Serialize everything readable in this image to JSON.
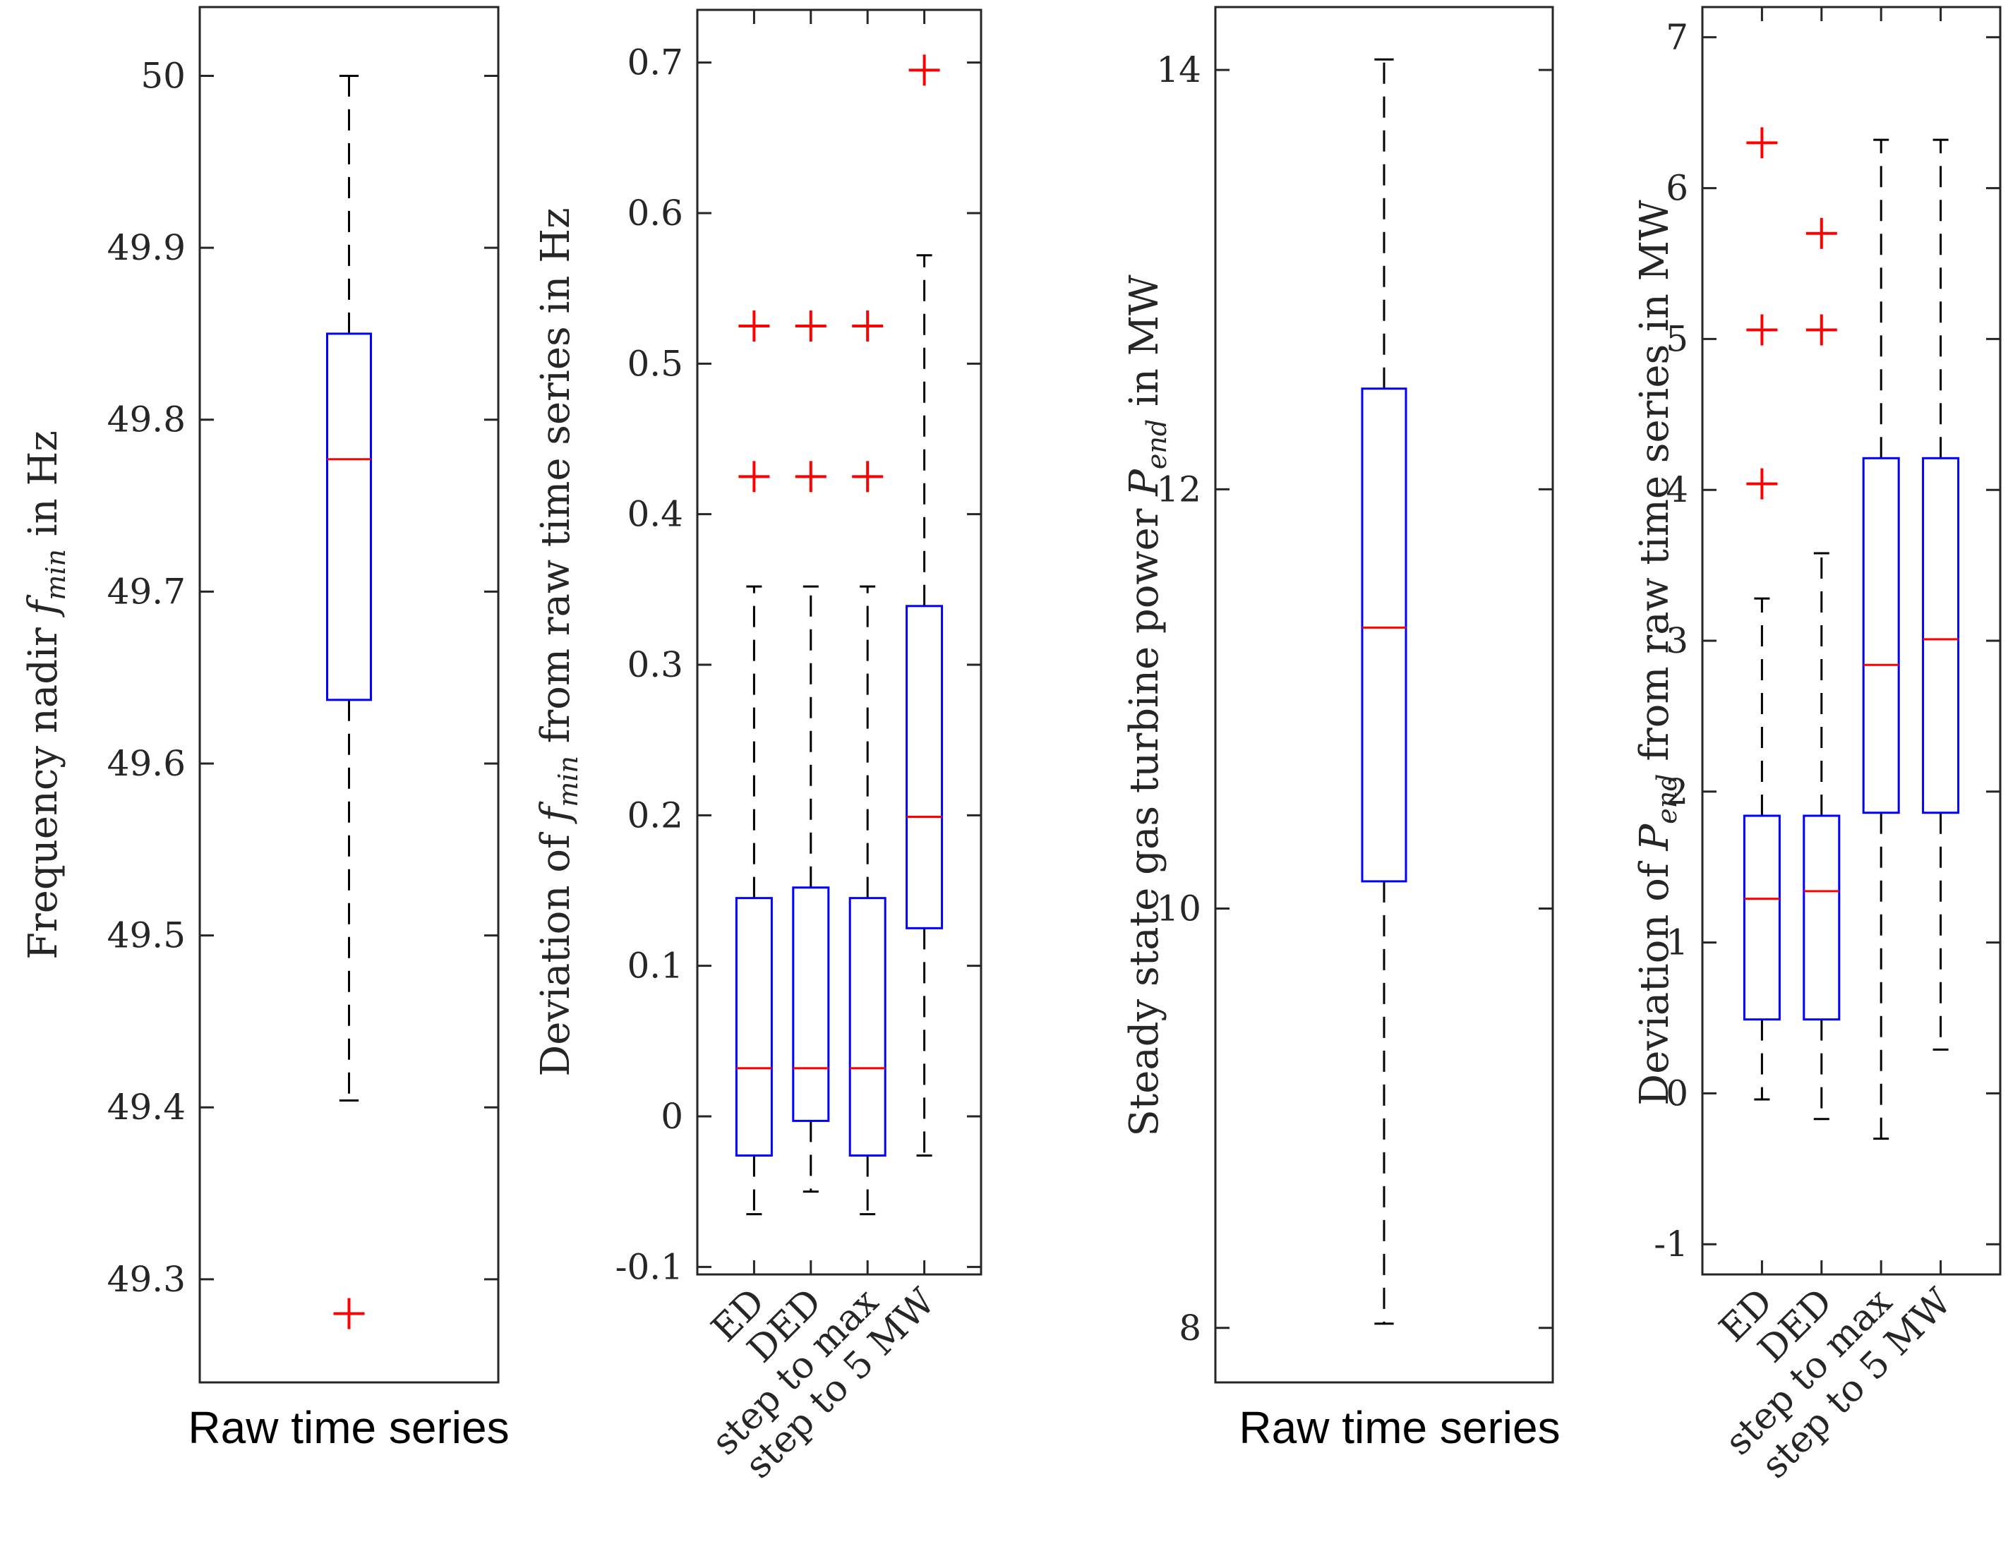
{
  "chart_data": [
    {
      "type": "box",
      "ylabel": {
        "prefix": "Frequency nadir ",
        "sym": "f",
        "sub": "min",
        "suffix": " in Hz"
      },
      "xlabel": "Raw time series",
      "ylim": [
        49.24,
        50.04
      ],
      "yticks": [
        49.3,
        49.4,
        49.5,
        49.6,
        49.7,
        49.8,
        49.9,
        50
      ],
      "ytick_labels": [
        "49.3",
        "49.4",
        "49.5",
        "49.6",
        "49.7",
        "49.8",
        "49.9",
        "50"
      ],
      "categories": [
        ""
      ],
      "boxes": [
        {
          "whisker_low": 49.404,
          "q1": 49.637,
          "median": 49.777,
          "q3": 49.85,
          "whisker_high": 50.0,
          "outliers": [
            49.28
          ]
        }
      ]
    },
    {
      "type": "box",
      "ylabel": {
        "prefix": "Deviation of ",
        "sym": "f",
        "sub": "min",
        "suffix": " from raw time series in Hz"
      },
      "xlabel": "",
      "ylim": [
        -0.105,
        0.735
      ],
      "yticks": [
        -0.1,
        0,
        0.1,
        0.2,
        0.3,
        0.4,
        0.5,
        0.6,
        0.7
      ],
      "ytick_labels": [
        "-0.1",
        "0",
        "0.1",
        "0.2",
        "0.3",
        "0.4",
        "0.5",
        "0.6",
        "0.7"
      ],
      "categories": [
        "ED",
        "DED",
        "step to max",
        "step to 5 MW"
      ],
      "boxes": [
        {
          "whisker_low": -0.065,
          "q1": -0.026,
          "median": 0.032,
          "q3": 0.145,
          "whisker_high": 0.352,
          "outliers": [
            0.425,
            0.525
          ]
        },
        {
          "whisker_low": -0.05,
          "q1": -0.003,
          "median": 0.032,
          "q3": 0.152,
          "whisker_high": 0.352,
          "outliers": [
            0.425,
            0.525
          ]
        },
        {
          "whisker_low": -0.065,
          "q1": -0.026,
          "median": 0.032,
          "q3": 0.145,
          "whisker_high": 0.352,
          "outliers": [
            0.425,
            0.525
          ]
        },
        {
          "whisker_low": -0.026,
          "q1": 0.125,
          "median": 0.199,
          "q3": 0.339,
          "whisker_high": 0.572,
          "outliers": [
            0.695
          ]
        }
      ]
    },
    {
      "type": "box",
      "ylabel": {
        "prefix": "Steady state gas turbine power ",
        "sym": "P",
        "sub": "end",
        "suffix": " in MW"
      },
      "xlabel": "Raw time series",
      "ylim": [
        7.74,
        14.3
      ],
      "yticks": [
        8,
        10,
        12,
        14
      ],
      "ytick_labels": [
        "8",
        "10",
        "12",
        "14"
      ],
      "categories": [
        ""
      ],
      "boxes": [
        {
          "whisker_low": 8.02,
          "q1": 10.13,
          "median": 11.34,
          "q3": 12.48,
          "whisker_high": 14.05,
          "outliers": []
        }
      ]
    },
    {
      "type": "box",
      "ylabel": {
        "prefix": "Deviation of ",
        "sym": "P",
        "sub": "end",
        "suffix": " from raw time series in MW"
      },
      "xlabel": "",
      "ylim": [
        -1.2,
        7.2
      ],
      "yticks": [
        -1,
        0,
        1,
        2,
        3,
        4,
        5,
        6,
        7
      ],
      "ytick_labels": [
        "-1",
        "0",
        "1",
        "2",
        "3",
        "4",
        "5",
        "6",
        "7"
      ],
      "categories": [
        "ED",
        "DED",
        "step to max",
        "step to 5 MW"
      ],
      "boxes": [
        {
          "whisker_low": -0.04,
          "q1": 0.49,
          "median": 1.29,
          "q3": 1.84,
          "whisker_high": 3.28,
          "outliers": [
            4.04,
            5.06,
            6.3
          ]
        },
        {
          "whisker_low": -0.17,
          "q1": 0.49,
          "median": 1.34,
          "q3": 1.84,
          "whisker_high": 3.58,
          "outliers": [
            5.06,
            5.7
          ]
        },
        {
          "whisker_low": -0.3,
          "q1": 1.86,
          "median": 2.84,
          "q3": 4.21,
          "whisker_high": 6.32,
          "outliers": []
        },
        {
          "whisker_low": 0.29,
          "q1": 1.86,
          "median": 3.01,
          "q3": 4.21,
          "whisker_high": 6.32,
          "outliers": []
        }
      ]
    }
  ],
  "colors": {
    "box": "#0000ff",
    "median": "#ff0000",
    "outlier": "#ff0000",
    "whisker": "#000000",
    "axes": "#262626",
    "text": "#262626"
  }
}
